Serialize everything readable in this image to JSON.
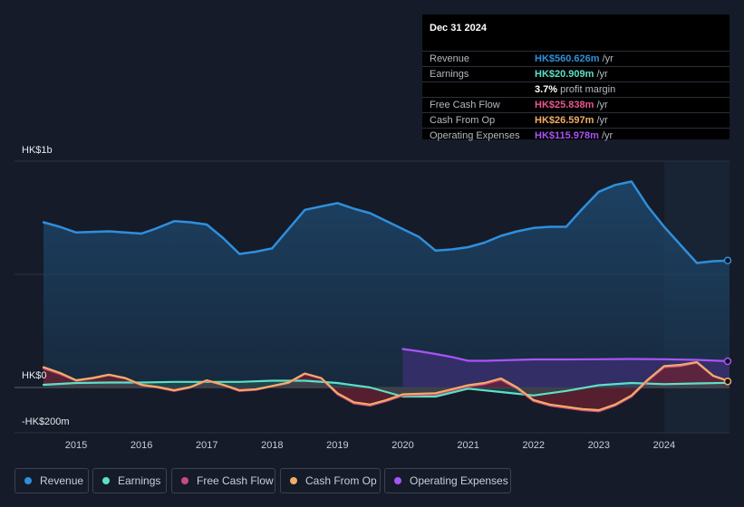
{
  "tooltip": {
    "date": "Dec 31 2024",
    "rows": [
      {
        "label": "Revenue",
        "value": "HK$560.626m",
        "unit": "/yr",
        "color": "#2f8fdd"
      },
      {
        "label": "Earnings",
        "value": "HK$20.909m",
        "unit": "/yr",
        "color": "#5de0c6"
      },
      {
        "label": "",
        "value": "3.7%",
        "unit": "profit margin",
        "color": "#ffffff"
      },
      {
        "label": "Free Cash Flow",
        "value": "HK$25.838m",
        "unit": "/yr",
        "color": "#e8578f"
      },
      {
        "label": "Cash From Op",
        "value": "HK$26.597m",
        "unit": "/yr",
        "color": "#f0ad66"
      },
      {
        "label": "Operating Expenses",
        "value": "HK$115.978m",
        "unit": "/yr",
        "color": "#a855f7"
      }
    ]
  },
  "legend": [
    {
      "label": "Revenue",
      "color": "#2f8fdd"
    },
    {
      "label": "Earnings",
      "color": "#5de0c6"
    },
    {
      "label": "Free Cash Flow",
      "color": "#c94a7e"
    },
    {
      "label": "Cash From Op",
      "color": "#f0ad66"
    },
    {
      "label": "Operating Expenses",
      "color": "#a855f7"
    }
  ],
  "chart_data": {
    "type": "area",
    "title": "",
    "xlabel": "",
    "ylabel": "",
    "ylim": [
      -200,
      1000
    ],
    "y_tick_labels": [
      "HK$1b",
      "HK$0",
      "-HK$200m"
    ],
    "y_ticks": [
      1000,
      0,
      -200
    ],
    "x_ticks": [
      2015,
      2016,
      2017,
      2018,
      2019,
      2020,
      2021,
      2022,
      2023,
      2024
    ],
    "x_tick_labels": [
      "2015",
      "2016",
      "2017",
      "2018",
      "2019",
      "2020",
      "2021",
      "2022",
      "2023",
      "2024"
    ],
    "xlim": [
      2014.5,
      2025.0
    ],
    "highlight_from": 2024.0,
    "series": [
      {
        "name": "Revenue",
        "color": "#2f8fdd",
        "points": [
          [
            2014.5,
            730
          ],
          [
            2014.75,
            710
          ],
          [
            2015.0,
            685
          ],
          [
            2015.5,
            690
          ],
          [
            2016.0,
            680
          ],
          [
            2016.2,
            700
          ],
          [
            2016.5,
            735
          ],
          [
            2016.75,
            730
          ],
          [
            2017.0,
            720
          ],
          [
            2017.25,
            660
          ],
          [
            2017.5,
            590
          ],
          [
            2017.75,
            600
          ],
          [
            2018.0,
            615
          ],
          [
            2018.25,
            700
          ],
          [
            2018.5,
            785
          ],
          [
            2018.75,
            800
          ],
          [
            2019.0,
            815
          ],
          [
            2019.25,
            790
          ],
          [
            2019.5,
            770
          ],
          [
            2019.75,
            735
          ],
          [
            2020.0,
            700
          ],
          [
            2020.25,
            665
          ],
          [
            2020.5,
            605
          ],
          [
            2020.75,
            610
          ],
          [
            2021.0,
            620
          ],
          [
            2021.25,
            640
          ],
          [
            2021.5,
            670
          ],
          [
            2021.75,
            690
          ],
          [
            2022.0,
            705
          ],
          [
            2022.25,
            710
          ],
          [
            2022.5,
            710
          ],
          [
            2022.75,
            790
          ],
          [
            2023.0,
            865
          ],
          [
            2023.25,
            895
          ],
          [
            2023.5,
            910
          ],
          [
            2023.75,
            800
          ],
          [
            2024.0,
            710
          ],
          [
            2024.25,
            630
          ],
          [
            2024.5,
            550
          ],
          [
            2024.75,
            558
          ],
          [
            2025.0,
            561
          ]
        ]
      },
      {
        "name": "Operating Expenses",
        "color": "#a855f7",
        "points": [
          [
            2020.0,
            170
          ],
          [
            2020.25,
            160
          ],
          [
            2020.5,
            148
          ],
          [
            2020.75,
            135
          ],
          [
            2021.0,
            118
          ],
          [
            2021.25,
            118
          ],
          [
            2021.5,
            120
          ],
          [
            2021.75,
            122
          ],
          [
            2022.0,
            124
          ],
          [
            2022.5,
            124
          ],
          [
            2023.0,
            125
          ],
          [
            2023.5,
            126
          ],
          [
            2024.0,
            125
          ],
          [
            2024.5,
            122
          ],
          [
            2025.0,
            116
          ]
        ]
      },
      {
        "name": "Earnings",
        "color": "#5de0c6",
        "points": [
          [
            2014.5,
            12
          ],
          [
            2015.0,
            20
          ],
          [
            2015.5,
            22
          ],
          [
            2016.0,
            22
          ],
          [
            2016.5,
            25
          ],
          [
            2017.0,
            25
          ],
          [
            2017.5,
            25
          ],
          [
            2018.0,
            30
          ],
          [
            2018.5,
            30
          ],
          [
            2019.0,
            20
          ],
          [
            2019.5,
            0
          ],
          [
            2020.0,
            -40
          ],
          [
            2020.5,
            -40
          ],
          [
            2021.0,
            -5
          ],
          [
            2021.5,
            -20
          ],
          [
            2022.0,
            -35
          ],
          [
            2022.5,
            -15
          ],
          [
            2023.0,
            10
          ],
          [
            2023.5,
            20
          ],
          [
            2024.0,
            15
          ],
          [
            2024.5,
            18
          ],
          [
            2025.0,
            21
          ]
        ]
      },
      {
        "name": "Free Cash Flow",
        "color": "#c94a7e",
        "points": [
          [
            2014.5,
            85
          ],
          [
            2014.75,
            60
          ],
          [
            2015.0,
            30
          ],
          [
            2015.25,
            40
          ],
          [
            2015.5,
            55
          ],
          [
            2015.75,
            40
          ],
          [
            2016.0,
            10
          ],
          [
            2016.25,
            0
          ],
          [
            2016.5,
            -15
          ],
          [
            2016.75,
            0
          ],
          [
            2017.0,
            30
          ],
          [
            2017.25,
            10
          ],
          [
            2017.5,
            -15
          ],
          [
            2017.75,
            -10
          ],
          [
            2018.0,
            5
          ],
          [
            2018.25,
            20
          ],
          [
            2018.5,
            60
          ],
          [
            2018.75,
            40
          ],
          [
            2019.0,
            -30
          ],
          [
            2019.25,
            -70
          ],
          [
            2019.5,
            -80
          ],
          [
            2019.75,
            -60
          ],
          [
            2020.0,
            -35
          ],
          [
            2020.5,
            -30
          ],
          [
            2021.0,
            5
          ],
          [
            2021.25,
            15
          ],
          [
            2021.5,
            35
          ],
          [
            2021.75,
            -5
          ],
          [
            2022.0,
            -60
          ],
          [
            2022.25,
            -80
          ],
          [
            2022.5,
            -90
          ],
          [
            2022.75,
            -100
          ],
          [
            2023.0,
            -105
          ],
          [
            2023.25,
            -80
          ],
          [
            2023.5,
            -40
          ],
          [
            2023.75,
            30
          ],
          [
            2024.0,
            90
          ],
          [
            2024.25,
            95
          ],
          [
            2024.5,
            110
          ],
          [
            2024.75,
            50
          ],
          [
            2025.0,
            26
          ]
        ]
      },
      {
        "name": "Cash From Op",
        "color": "#f0ad66",
        "points": [
          [
            2014.5,
            90
          ],
          [
            2014.75,
            65
          ],
          [
            2015.0,
            32
          ],
          [
            2015.25,
            42
          ],
          [
            2015.5,
            57
          ],
          [
            2015.75,
            42
          ],
          [
            2016.0,
            12
          ],
          [
            2016.25,
            2
          ],
          [
            2016.5,
            -12
          ],
          [
            2016.75,
            2
          ],
          [
            2017.0,
            32
          ],
          [
            2017.25,
            12
          ],
          [
            2017.5,
            -12
          ],
          [
            2017.75,
            -8
          ],
          [
            2018.0,
            7
          ],
          [
            2018.25,
            22
          ],
          [
            2018.5,
            62
          ],
          [
            2018.75,
            42
          ],
          [
            2019.0,
            -25
          ],
          [
            2019.25,
            -65
          ],
          [
            2019.5,
            -75
          ],
          [
            2019.75,
            -55
          ],
          [
            2020.0,
            -30
          ],
          [
            2020.5,
            -25
          ],
          [
            2021.0,
            10
          ],
          [
            2021.25,
            20
          ],
          [
            2021.5,
            40
          ],
          [
            2021.75,
            0
          ],
          [
            2022.0,
            -55
          ],
          [
            2022.25,
            -75
          ],
          [
            2022.5,
            -85
          ],
          [
            2022.75,
            -95
          ],
          [
            2023.0,
            -100
          ],
          [
            2023.25,
            -75
          ],
          [
            2023.5,
            -35
          ],
          [
            2023.75,
            35
          ],
          [
            2024.0,
            95
          ],
          [
            2024.25,
            100
          ],
          [
            2024.5,
            112
          ],
          [
            2024.75,
            52
          ],
          [
            2025.0,
            27
          ]
        ]
      }
    ]
  }
}
